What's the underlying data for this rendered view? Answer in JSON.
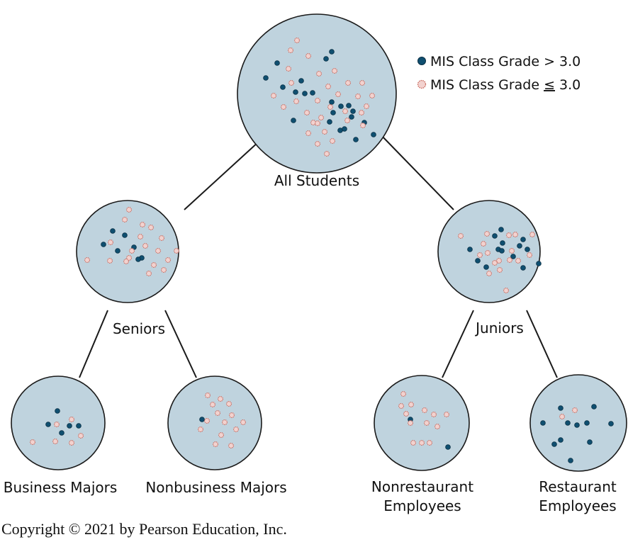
{
  "colors": {
    "node_fill": "#bfd3de",
    "node_stroke": "#1a1a1a",
    "edge": "#1a1a1a",
    "high_fill": "#0f4f70",
    "high_stroke": "#0a2f44",
    "low_fill": "#f2d2cf",
    "low_stroke": "#c9685c"
  },
  "legend": {
    "high_label": "MIS Class Grade > 3.0",
    "low_label_prefix": "MIS Class Grade ",
    "low_label_symbol": "≤",
    "low_label_suffix": " 3.0"
  },
  "nodes": {
    "all_students": {
      "label": "All Students"
    },
    "seniors": {
      "label": "Seniors"
    },
    "juniors": {
      "label": "Juniors"
    },
    "business_majors": {
      "label": "Business Majors"
    },
    "nonbusiness_majors": {
      "label": "Nonbusiness Majors"
    },
    "nonrestaurant_employees": {
      "label_line1": "Nonrestaurant",
      "label_line2": "Employees"
    },
    "restaurant_employees": {
      "label_line1": "Restaurant",
      "label_line2": "Employees"
    }
  },
  "copyright": "Copyright © 2021 by Pearson Education, Inc."
}
